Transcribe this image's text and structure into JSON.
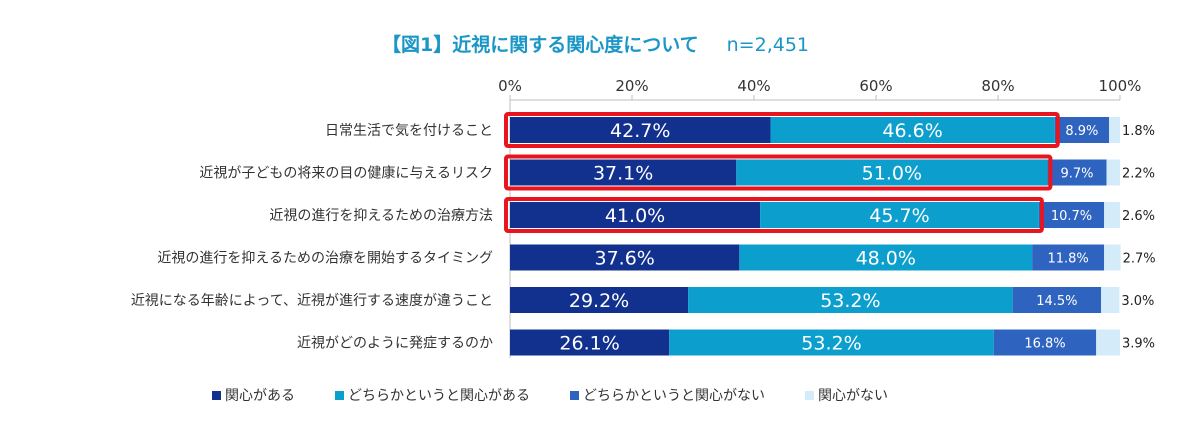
{
  "title": "【図1】近視に関する関心度について",
  "sample": "n=2,451",
  "colors": {
    "very_interested": "#12318f",
    "somewhat_interested": "#0c9fce",
    "somewhat_not": "#2e64bf",
    "not_interested": "#d4ecf9",
    "highlight": "#e8141e"
  },
  "chart_data": {
    "type": "bar",
    "orientation": "horizontal-stacked-100",
    "xlim": [
      0,
      100
    ],
    "ticks": [
      "0%",
      "20%",
      "40%",
      "60%",
      "80%",
      "100%"
    ],
    "categories": [
      "日常生活で気を付けること",
      "近視が子どもの将来の目の健康に与えるリスク",
      "近視の進行を抑えるための治療方法",
      "近視の進行を抑えるための治療を開始するタイミング",
      "近視になる年齢によって、近視が進行する速度が違うこと",
      "近視がどのように発症するのか"
    ],
    "series": [
      {
        "name": "関心がある",
        "values": [
          42.7,
          37.1,
          41.0,
          37.6,
          29.2,
          26.1
        ],
        "labels": [
          "42.7%",
          "37.1%",
          "41.0%",
          "37.6%",
          "29.2%",
          "26.1%"
        ]
      },
      {
        "name": "どちらかというと関心がある",
        "values": [
          46.6,
          51.0,
          45.7,
          48.0,
          53.2,
          53.2
        ],
        "labels": [
          "46.6%",
          "51.0%",
          "45.7%",
          "48.0%",
          "53.2%",
          "53.2%"
        ]
      },
      {
        "name": "どちらかというと関心がない",
        "values": [
          8.9,
          9.7,
          10.7,
          11.8,
          14.5,
          16.8
        ],
        "labels": [
          "8.9%",
          "9.7%",
          "10.7%",
          "11.8%",
          "14.5%",
          "16.8%"
        ]
      },
      {
        "name": "関心がない",
        "values": [
          1.8,
          2.2,
          2.6,
          2.7,
          3.0,
          3.9
        ],
        "labels": [
          "1.8%",
          "2.2%",
          "2.6%",
          "2.7%",
          "3.0%",
          "3.9%"
        ]
      }
    ],
    "highlighted_rows": [
      0,
      1,
      2
    ],
    "grid": false,
    "legend_position": "bottom"
  }
}
